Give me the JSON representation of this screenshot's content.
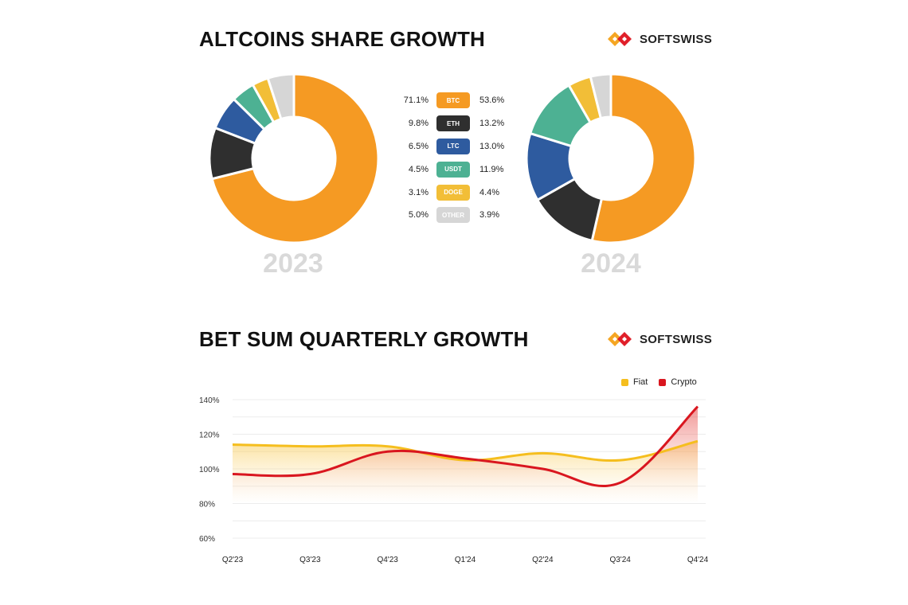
{
  "top": {
    "title": "ALTCOINS SHARE GROWTH",
    "logo_text": "SOFTSWISS",
    "year_left": "2023",
    "year_right": "2024"
  },
  "bottom": {
    "title": "BET SUM QUARTERLY GROWTH",
    "logo_text": "SOFTSWISS"
  },
  "legend": {
    "rows": [
      {
        "label": "BTC",
        "v2023": "71.1%",
        "v2024": "53.6%",
        "color": "#F59A23"
      },
      {
        "label": "ETH",
        "v2023": "9.8%",
        "v2024": "13.2%",
        "color": "#2F2F2F"
      },
      {
        "label": "LTC",
        "v2023": "6.5%",
        "v2024": "13.0%",
        "color": "#2E5B9F"
      },
      {
        "label": "USDT",
        "v2023": "4.5%",
        "v2024": "11.9%",
        "color": "#4DB193"
      },
      {
        "label": "DOGE",
        "v2023": "3.1%",
        "v2024": "4.4%",
        "color": "#F2BE37"
      },
      {
        "label": "OTHER",
        "v2023": "5.0%",
        "v2024": "3.9%",
        "color": "#D6D6D6"
      }
    ]
  },
  "line_legend": {
    "fiat_label": "Fiat",
    "crypto_label": "Crypto",
    "fiat_color": "#F5BE1E",
    "crypto_color": "#D9161F"
  },
  "chart_data": [
    {
      "type": "pie",
      "year": "2023",
      "categories": [
        "BTC",
        "ETH",
        "LTC",
        "USDT",
        "DOGE",
        "OTHER"
      ],
      "values": [
        71.1,
        9.8,
        6.5,
        4.5,
        3.1,
        5.0
      ]
    },
    {
      "type": "pie",
      "year": "2024",
      "categories": [
        "BTC",
        "ETH",
        "LTC",
        "USDT",
        "DOGE",
        "OTHER"
      ],
      "values": [
        53.6,
        13.2,
        13.0,
        11.9,
        4.4,
        3.9
      ]
    },
    {
      "type": "line",
      "title": "BET SUM QUARTERLY GROWTH",
      "categories": [
        "Q2'23",
        "Q3'23",
        "Q4'23",
        "Q1'24",
        "Q2'24",
        "Q3'24",
        "Q4'24"
      ],
      "series": [
        {
          "name": "Fiat",
          "values": [
            114,
            113,
            113,
            105,
            109,
            105,
            116
          ]
        },
        {
          "name": "Crypto",
          "values": [
            97,
            97,
            110,
            106,
            100,
            92,
            136
          ]
        }
      ],
      "yticks": [
        "140%",
        "120%",
        "100%",
        "80%",
        "60%"
      ],
      "ylim": [
        60,
        140
      ],
      "legend": "top-right",
      "grid": true
    }
  ]
}
